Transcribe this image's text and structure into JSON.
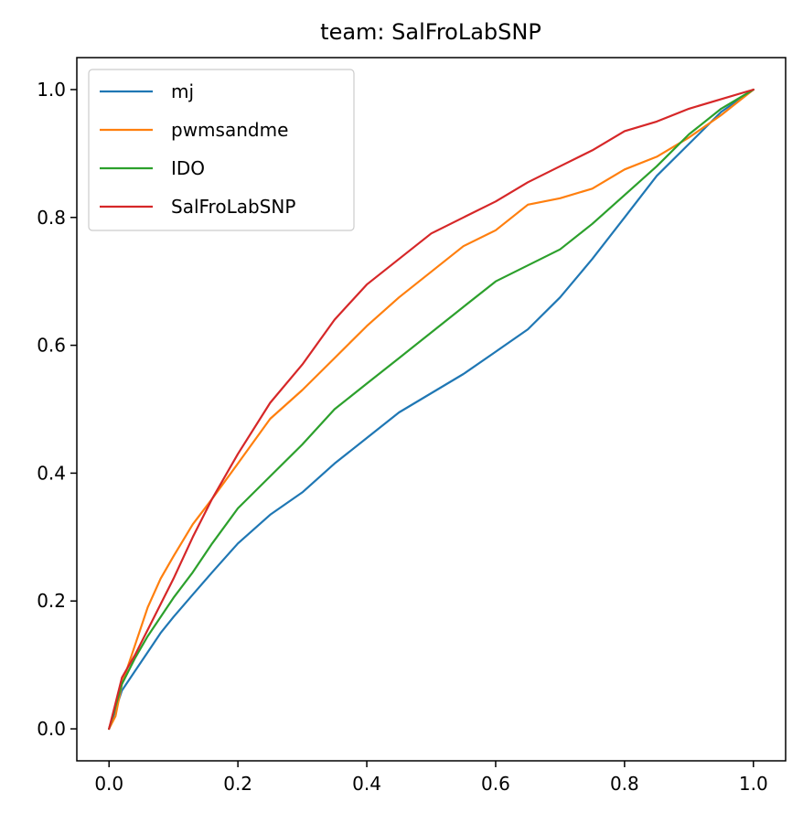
{
  "chart_data": {
    "type": "line",
    "title": "team: SalFroLabSNP",
    "xlabel": "",
    "ylabel": "",
    "xlim": [
      -0.05,
      1.05
    ],
    "ylim": [
      -0.05,
      1.05
    ],
    "xticks": [
      0.0,
      0.2,
      0.4,
      0.6,
      0.8,
      1.0
    ],
    "xtick_labels": [
      "0.0",
      "0.2",
      "0.4",
      "0.6",
      "0.8",
      "1.0"
    ],
    "yticks": [
      0.0,
      0.2,
      0.4,
      0.6,
      0.8,
      1.0
    ],
    "ytick_labels": [
      "0.0",
      "0.2",
      "0.4",
      "0.6",
      "0.8",
      "1.0"
    ],
    "grid": false,
    "legend_position": "top-left",
    "series": [
      {
        "name": "mj",
        "color": "#1f77b4",
        "x": [
          0.0,
          0.01,
          0.02,
          0.04,
          0.06,
          0.08,
          0.1,
          0.13,
          0.16,
          0.2,
          0.25,
          0.3,
          0.35,
          0.4,
          0.45,
          0.5,
          0.55,
          0.6,
          0.65,
          0.7,
          0.75,
          0.8,
          0.85,
          0.9,
          0.95,
          1.0
        ],
        "y": [
          0.0,
          0.03,
          0.06,
          0.09,
          0.12,
          0.15,
          0.175,
          0.21,
          0.245,
          0.29,
          0.335,
          0.37,
          0.415,
          0.455,
          0.495,
          0.525,
          0.555,
          0.59,
          0.625,
          0.675,
          0.735,
          0.8,
          0.865,
          0.915,
          0.965,
          1.0
        ]
      },
      {
        "name": "pwmsandme",
        "color": "#ff7f0e",
        "x": [
          0.0,
          0.01,
          0.02,
          0.04,
          0.06,
          0.08,
          0.1,
          0.13,
          0.16,
          0.2,
          0.25,
          0.3,
          0.35,
          0.4,
          0.45,
          0.5,
          0.55,
          0.6,
          0.65,
          0.7,
          0.75,
          0.8,
          0.85,
          0.9,
          0.95,
          1.0
        ],
        "y": [
          0.0,
          0.02,
          0.07,
          0.13,
          0.19,
          0.235,
          0.27,
          0.32,
          0.36,
          0.415,
          0.485,
          0.53,
          0.58,
          0.63,
          0.675,
          0.715,
          0.755,
          0.78,
          0.82,
          0.83,
          0.845,
          0.875,
          0.895,
          0.925,
          0.96,
          1.0
        ]
      },
      {
        "name": "IDO",
        "color": "#2ca02c",
        "x": [
          0.0,
          0.01,
          0.02,
          0.04,
          0.06,
          0.08,
          0.1,
          0.13,
          0.16,
          0.2,
          0.25,
          0.3,
          0.35,
          0.4,
          0.45,
          0.5,
          0.55,
          0.6,
          0.65,
          0.7,
          0.75,
          0.8,
          0.85,
          0.9,
          0.95,
          1.0
        ],
        "y": [
          0.0,
          0.035,
          0.07,
          0.11,
          0.145,
          0.175,
          0.205,
          0.245,
          0.29,
          0.345,
          0.395,
          0.445,
          0.5,
          0.54,
          0.58,
          0.62,
          0.66,
          0.7,
          0.725,
          0.75,
          0.79,
          0.835,
          0.88,
          0.93,
          0.97,
          1.0
        ]
      },
      {
        "name": "SalFroLabSNP",
        "color": "#d62728",
        "x": [
          0.0,
          0.01,
          0.02,
          0.04,
          0.06,
          0.08,
          0.1,
          0.13,
          0.16,
          0.2,
          0.25,
          0.3,
          0.35,
          0.4,
          0.45,
          0.5,
          0.55,
          0.6,
          0.65,
          0.7,
          0.75,
          0.8,
          0.85,
          0.9,
          0.95,
          1.0
        ],
        "y": [
          0.0,
          0.04,
          0.08,
          0.115,
          0.155,
          0.195,
          0.235,
          0.3,
          0.36,
          0.43,
          0.51,
          0.57,
          0.64,
          0.695,
          0.735,
          0.775,
          0.8,
          0.825,
          0.855,
          0.88,
          0.905,
          0.935,
          0.95,
          0.97,
          0.985,
          1.0
        ]
      }
    ]
  }
}
